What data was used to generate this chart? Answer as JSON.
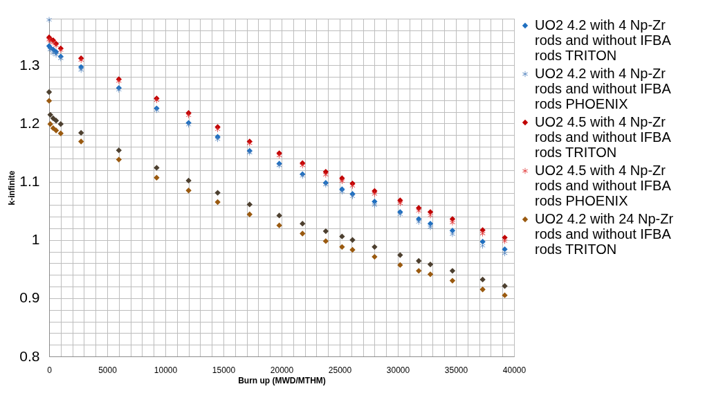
{
  "chart_data": {
    "type": "scatter",
    "xlabel": "Burn up (MWD/MTHM)",
    "ylabel": "k-infinite",
    "x": [
      0,
      100,
      350,
      600,
      1000,
      2750,
      6000,
      9250,
      12000,
      14500,
      17250,
      19800,
      21800,
      23800,
      25200,
      26100,
      28000,
      30200,
      31800,
      32800,
      34700,
      37300,
      39200
    ],
    "xlim": [
      0,
      40000
    ],
    "xticks": [
      0,
      5000,
      10000,
      15000,
      20000,
      25000,
      30000,
      35000,
      40000
    ],
    "ylim": [
      0.8,
      1.38
    ],
    "yticks": [
      0.8,
      0.9,
      1,
      1.1,
      1.2,
      1.3
    ],
    "grid": true,
    "legend": "right",
    "series": [
      {
        "name": "UO2 4.2 with 4 Np-Zr rods  and without IFBA rods TRITON",
        "color": "#1f6fc0",
        "marker": "diamond",
        "values": [
          1.333,
          1.33,
          1.327,
          1.323,
          1.315,
          1.297,
          1.261,
          1.226,
          1.201,
          1.177,
          1.153,
          1.131,
          1.113,
          1.098,
          1.087,
          1.079,
          1.066,
          1.048,
          1.036,
          1.028,
          1.016,
          0.997,
          0.984
        ]
      },
      {
        "name": "UO2 4.2 with 4 Np-Zr rods  and without IFBA rods PHOENIX",
        "color": "#4f81bd",
        "marker": "cross",
        "values": [
          1.378,
          1.327,
          1.321,
          1.318,
          1.312,
          1.292,
          1.258,
          1.223,
          1.198,
          1.173,
          1.15,
          1.128,
          1.11,
          1.095,
          1.083,
          1.075,
          1.06,
          1.044,
          1.031,
          1.022,
          1.01,
          0.99,
          0.977
        ]
      },
      {
        "name": "UO2 4.5 with 4 Np-Zr rods and without IFBA rods TRITON",
        "color": "#c00000",
        "marker": "diamond",
        "values": [
          1.348,
          1.345,
          1.343,
          1.337,
          1.329,
          1.312,
          1.276,
          1.243,
          1.218,
          1.194,
          1.169,
          1.149,
          1.132,
          1.117,
          1.106,
          1.097,
          1.084,
          1.068,
          1.055,
          1.048,
          1.036,
          1.017,
          1.004
        ]
      },
      {
        "name": "UO2 4.5 with 4 Np-Zr rods and without IFBA rods PHOENIX",
        "color": "#e03030",
        "marker": "cross",
        "values": [
          1.344,
          1.342,
          1.339,
          1.334,
          1.326,
          1.309,
          1.273,
          1.24,
          1.214,
          1.19,
          1.166,
          1.145,
          1.128,
          1.112,
          1.101,
          1.093,
          1.079,
          1.063,
          1.05,
          1.042,
          1.03,
          1.011,
          0.998
        ]
      },
      {
        "name": "UO2 4.2 with 24 Np-Zr rods  and without IFBA rods TRITON",
        "color": "#9a5a10",
        "marker": "diamond",
        "values": [
          1.239,
          1.199,
          1.192,
          1.188,
          1.183,
          1.169,
          1.138,
          1.107,
          1.085,
          1.065,
          1.044,
          1.025,
          1.011,
          0.998,
          0.988,
          0.983,
          0.971,
          0.957,
          0.947,
          0.941,
          0.93,
          0.915,
          0.905
        ]
      },
      {
        "color": "#4d4030",
        "marker": "diamond",
        "values": [
          1.254,
          1.215,
          1.209,
          1.205,
          1.199,
          1.184,
          1.154,
          1.124,
          1.102,
          1.081,
          1.061,
          1.042,
          1.028,
          1.015,
          1.006,
          1.0,
          0.988,
          0.974,
          0.964,
          0.958,
          0.947,
          0.932,
          0.921
        ]
      }
    ]
  }
}
